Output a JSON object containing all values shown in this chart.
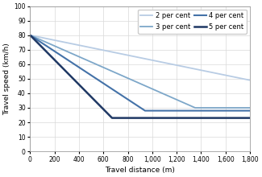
{
  "title": "",
  "xlabel": "Travel distance (m)",
  "ylabel": "Travel speed (km/h)",
  "xlim": [
    0,
    1800
  ],
  "ylim": [
    0,
    100
  ],
  "xticks": [
    0,
    200,
    400,
    600,
    800,
    1000,
    1200,
    1400,
    1600,
    1800
  ],
  "yticks": [
    0,
    10,
    20,
    30,
    40,
    50,
    60,
    70,
    80,
    90,
    100
  ],
  "series": [
    {
      "label": "2 per cent",
      "color": "#b8cce4",
      "linewidth": 1.3,
      "v0": 80,
      "vmin": 49,
      "slope_end": 1800
    },
    {
      "label": "3 per cent",
      "color": "#7da7c9",
      "linewidth": 1.3,
      "v0": 80,
      "vmin": 30,
      "slope_end": 1350
    },
    {
      "label": "4 per cent",
      "color": "#4472a8",
      "linewidth": 1.5,
      "v0": 80,
      "vmin": 28,
      "slope_end": 940
    },
    {
      "label": "5 per cent",
      "color": "#1f3864",
      "linewidth": 1.8,
      "v0": 80,
      "vmin": 23,
      "slope_end": 670
    }
  ],
  "legend_entries": [
    {
      "label": "2 per cent",
      "color": "#b8cce4",
      "linewidth": 1.3
    },
    {
      "label": "3 per cent",
      "color": "#7da7c9",
      "linewidth": 1.3
    },
    {
      "label": "4 per cent",
      "color": "#4472a8",
      "linewidth": 1.5
    },
    {
      "label": "5 per cent",
      "color": "#1f3864",
      "linewidth": 1.8
    }
  ],
  "grid_color": "#d9d9d9",
  "background_color": "#ffffff",
  "tick_fontsize": 5.5,
  "label_fontsize": 6.5,
  "legend_fontsize": 6.0
}
